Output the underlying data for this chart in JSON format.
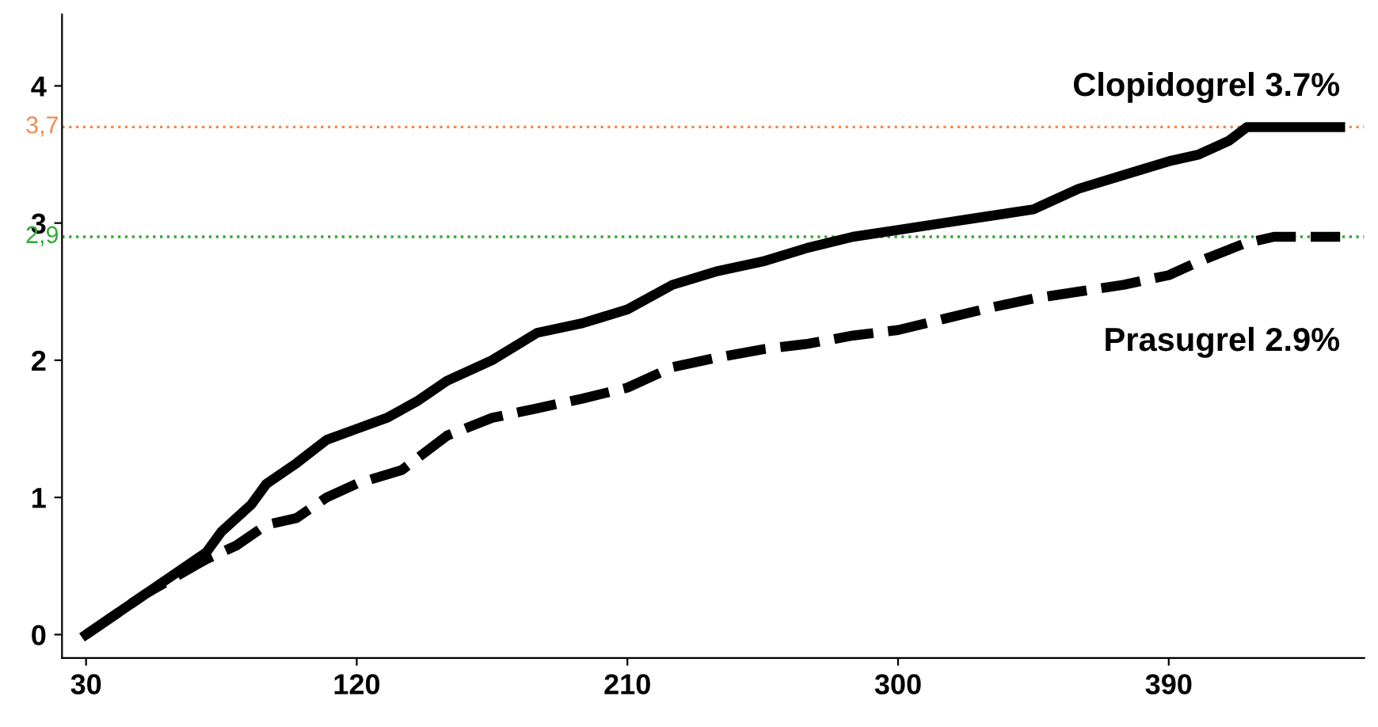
{
  "chart_data": {
    "type": "line",
    "xlim": [
      22,
      455
    ],
    "ylim": [
      -0.17,
      4.52
    ],
    "xticks": [
      30,
      120,
      210,
      300,
      390
    ],
    "yticks": [
      0,
      1,
      2,
      3,
      4
    ],
    "grid": false,
    "legend": false,
    "marker": "none",
    "ref_lines": [
      {
        "axis": "y",
        "value": 3.7,
        "label": "3,7",
        "color": "#f08a50",
        "line_style": "dotted"
      },
      {
        "axis": "y",
        "value": 2.9,
        "label": "2,9",
        "color": "#33aa33",
        "line_style": "dotted"
      }
    ],
    "series": [
      {
        "name": "Clopidogrel 3.7%",
        "color": "#000000",
        "line_style": "solid",
        "x": [
          30,
          50,
          60,
          70,
          75,
          85,
          90,
          100,
          110,
          120,
          130,
          140,
          150,
          165,
          180,
          195,
          210,
          225,
          240,
          255,
          270,
          285,
          300,
          315,
          330,
          345,
          360,
          375,
          390,
          400,
          410,
          416,
          447
        ],
        "values": [
          0,
          0.3,
          0.45,
          0.6,
          0.75,
          0.95,
          1.1,
          1.25,
          1.42,
          1.5,
          1.58,
          1.7,
          1.85,
          2.0,
          2.2,
          2.27,
          2.37,
          2.55,
          2.65,
          2.72,
          2.82,
          2.9,
          2.95,
          3.0,
          3.05,
          3.1,
          3.25,
          3.35,
          3.45,
          3.5,
          3.6,
          3.7,
          3.7
        ]
      },
      {
        "name": "Prasugrel 2.9%",
        "color": "#000000",
        "line_style": "dashed",
        "x": [
          30,
          50,
          70,
          80,
          90,
          100,
          110,
          120,
          135,
          150,
          165,
          180,
          195,
          210,
          225,
          240,
          255,
          270,
          285,
          300,
          315,
          330,
          345,
          360,
          375,
          390,
          400,
          415,
          425,
          447
        ],
        "values": [
          0,
          0.3,
          0.55,
          0.65,
          0.8,
          0.85,
          1.0,
          1.1,
          1.2,
          1.45,
          1.58,
          1.65,
          1.72,
          1.8,
          1.95,
          2.02,
          2.08,
          2.12,
          2.18,
          2.22,
          2.3,
          2.38,
          2.45,
          2.5,
          2.55,
          2.62,
          2.72,
          2.85,
          2.9,
          2.9
        ]
      }
    ]
  }
}
